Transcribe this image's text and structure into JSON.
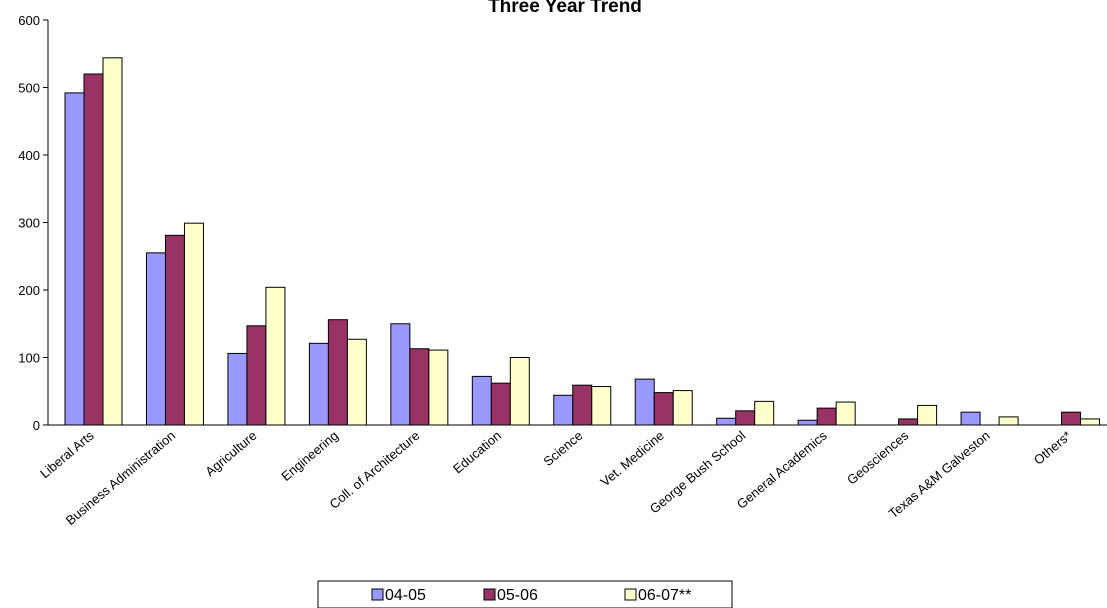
{
  "chart_data": {
    "type": "bar",
    "title": "Three Year Trend",
    "xlabel": "",
    "ylabel": "",
    "ylim": [
      0,
      600
    ],
    "yticks": [
      0,
      100,
      200,
      300,
      400,
      500,
      600
    ],
    "grid": false,
    "legend_position": "bottom",
    "categories": [
      "Liberal Arts",
      "Business Administration",
      "Agriculture",
      "Engineering",
      "Coll. of Architecture",
      "Education",
      "Science",
      "Vet. Medicine",
      "George Bush School",
      "General Academics",
      "Geosciences",
      "Texas A&M  Galveston",
      "Others*"
    ],
    "series": [
      {
        "name": "04-05",
        "color": "#9999ff",
        "values": [
          492,
          255,
          106,
          121,
          150,
          72,
          44,
          68,
          10,
          7,
          0,
          19,
          0
        ]
      },
      {
        "name": "05-06",
        "color": "#993366",
        "values": [
          520,
          281,
          147,
          156,
          113,
          62,
          59,
          48,
          21,
          25,
          9,
          0,
          19
        ]
      },
      {
        "name": "06-07**",
        "color": "#ffffcc",
        "values": [
          544,
          299,
          204,
          127,
          111,
          100,
          57,
          51,
          35,
          34,
          29,
          12,
          9
        ]
      }
    ]
  }
}
